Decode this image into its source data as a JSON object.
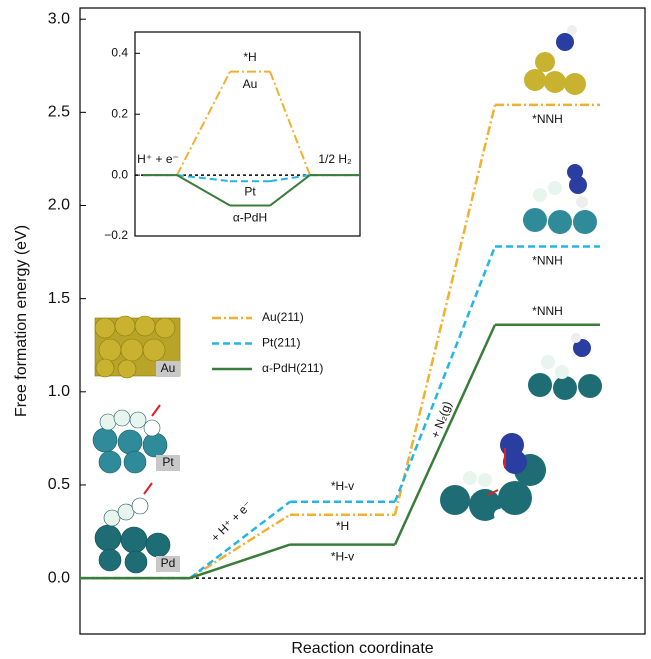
{
  "chart_data": [
    {
      "type": "step",
      "x_label": "Reaction coordinate",
      "y_label": "Free formation energy (eV)",
      "categories": [
        null,
        null,
        null
      ],
      "ylim": [
        -0.3,
        3.06
      ],
      "yticks": [
        {
          "value": 0,
          "label": "0.0"
        },
        0.5,
        {
          "value": 1,
          "label": "1.0"
        },
        1.5,
        {
          "value": 2,
          "label": "2.0"
        },
        2.5,
        {
          "value": 3,
          "label": "3.0"
        }
      ],
      "series": [
        {
          "name": "Au(211)",
          "color": "#f0b030",
          "dash": "dashdot",
          "values": [
            0,
            0.34,
            2.54
          ],
          "state_labels": [
            null,
            "*H",
            "*NNH"
          ]
        },
        {
          "name": "Pt(211)",
          "color": "#22b5e6",
          "dash": "dashed",
          "values": [
            0,
            0.41,
            1.78
          ],
          "state_labels": [
            null,
            "*H-v",
            "*NNH"
          ]
        },
        {
          "name": "α-PdH(211)",
          "color": "#3a7d3a",
          "dash": "solid",
          "values": [
            0,
            0.18,
            1.36
          ],
          "state_labels": [
            null,
            "*H-v",
            "*NNH"
          ]
        }
      ],
      "step_labels": [
        "+ H⁺ + e⁻",
        "+ N₂(g)"
      ],
      "structure_labels": [
        "Au",
        "Pt",
        "Pd"
      ],
      "legend": "center-left"
    },
    {
      "type": "step",
      "categories": [
        "H⁺ + e⁻",
        "*H",
        "1/2 H₂"
      ],
      "ylim": [
        -0.2,
        0.47
      ],
      "yticks": [
        {
          "value": -0.2,
          "label": "−0.2"
        },
        {
          "value": 0,
          "label": "0.0"
        },
        0.2,
        0.4
      ],
      "series": [
        {
          "name": "Au",
          "color": "#f0b030",
          "dash": "dashdot",
          "values": [
            0,
            0.34,
            0
          ]
        },
        {
          "name": "Pt",
          "color": "#22b5e6",
          "dash": "dashed",
          "values": [
            0,
            -0.02,
            0
          ]
        },
        {
          "name": "α-PdH",
          "color": "#3a7d3a",
          "dash": "solid",
          "values": [
            0,
            -0.1,
            0
          ]
        }
      ]
    }
  ]
}
